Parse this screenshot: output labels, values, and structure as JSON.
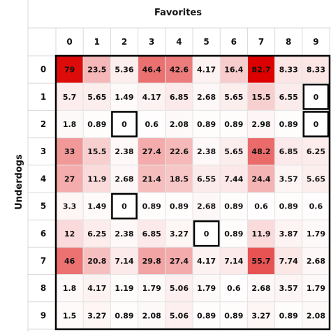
{
  "chart_data": {
    "type": "heatmap",
    "title": "",
    "xlabel": "Favorites",
    "ylabel": "Underdogs",
    "x_categories": [
      "0",
      "1",
      "2",
      "3",
      "4",
      "5",
      "6",
      "7",
      "8",
      "9"
    ],
    "y_categories": [
      "0",
      "1",
      "2",
      "3",
      "4",
      "5",
      "6",
      "7",
      "8",
      "9"
    ],
    "values": [
      [
        "79",
        "23.5",
        "5.36",
        "46.4",
        "42.6",
        "4.17",
        "16.4",
        "82.7",
        "8.33",
        "8.33"
      ],
      [
        "5.7",
        "5.65",
        "1.49",
        "4.17",
        "6.85",
        "2.68",
        "5.65",
        "15.5",
        "6.55",
        "0"
      ],
      [
        "1.8",
        "0.89",
        "0",
        "0.6",
        "2.08",
        "0.89",
        "0.89",
        "2.98",
        "0.89",
        "0"
      ],
      [
        "33",
        "15.5",
        "2.38",
        "27.4",
        "22.6",
        "2.38",
        "5.65",
        "48.2",
        "6.85",
        "6.25"
      ],
      [
        "27",
        "11.9",
        "2.68",
        "21.4",
        "18.5",
        "6.55",
        "7.44",
        "24.4",
        "3.57",
        "5.65"
      ],
      [
        "3.3",
        "1.49",
        "0",
        "0.89",
        "0.89",
        "2.68",
        "0.89",
        "0.6",
        "0.89",
        "0.6"
      ],
      [
        "12",
        "6.25",
        "2.38",
        "6.85",
        "3.27",
        "0",
        "0.89",
        "11.9",
        "3.87",
        "1.79"
      ],
      [
        "46",
        "20.8",
        "7.14",
        "29.8",
        "27.4",
        "4.17",
        "7.14",
        "55.7",
        "7.74",
        "2.68"
      ],
      [
        "1.8",
        "4.17",
        "1.19",
        "1.79",
        "5.06",
        "1.79",
        "0.6",
        "2.68",
        "3.57",
        "1.79"
      ],
      [
        "1.5",
        "3.27",
        "0.89",
        "2.08",
        "5.06",
        "0.89",
        "0.89",
        "3.27",
        "0.89",
        "2.08"
      ]
    ],
    "outlined_cells": [
      [
        1,
        9
      ],
      [
        2,
        2
      ],
      [
        2,
        9
      ],
      [
        5,
        2
      ],
      [
        6,
        5
      ]
    ],
    "color_scale": {
      "min": 0,
      "max": 82.7,
      "low_color": "#ffffff",
      "high_color": "#dc0000"
    },
    "grid": true,
    "legend": "none"
  }
}
